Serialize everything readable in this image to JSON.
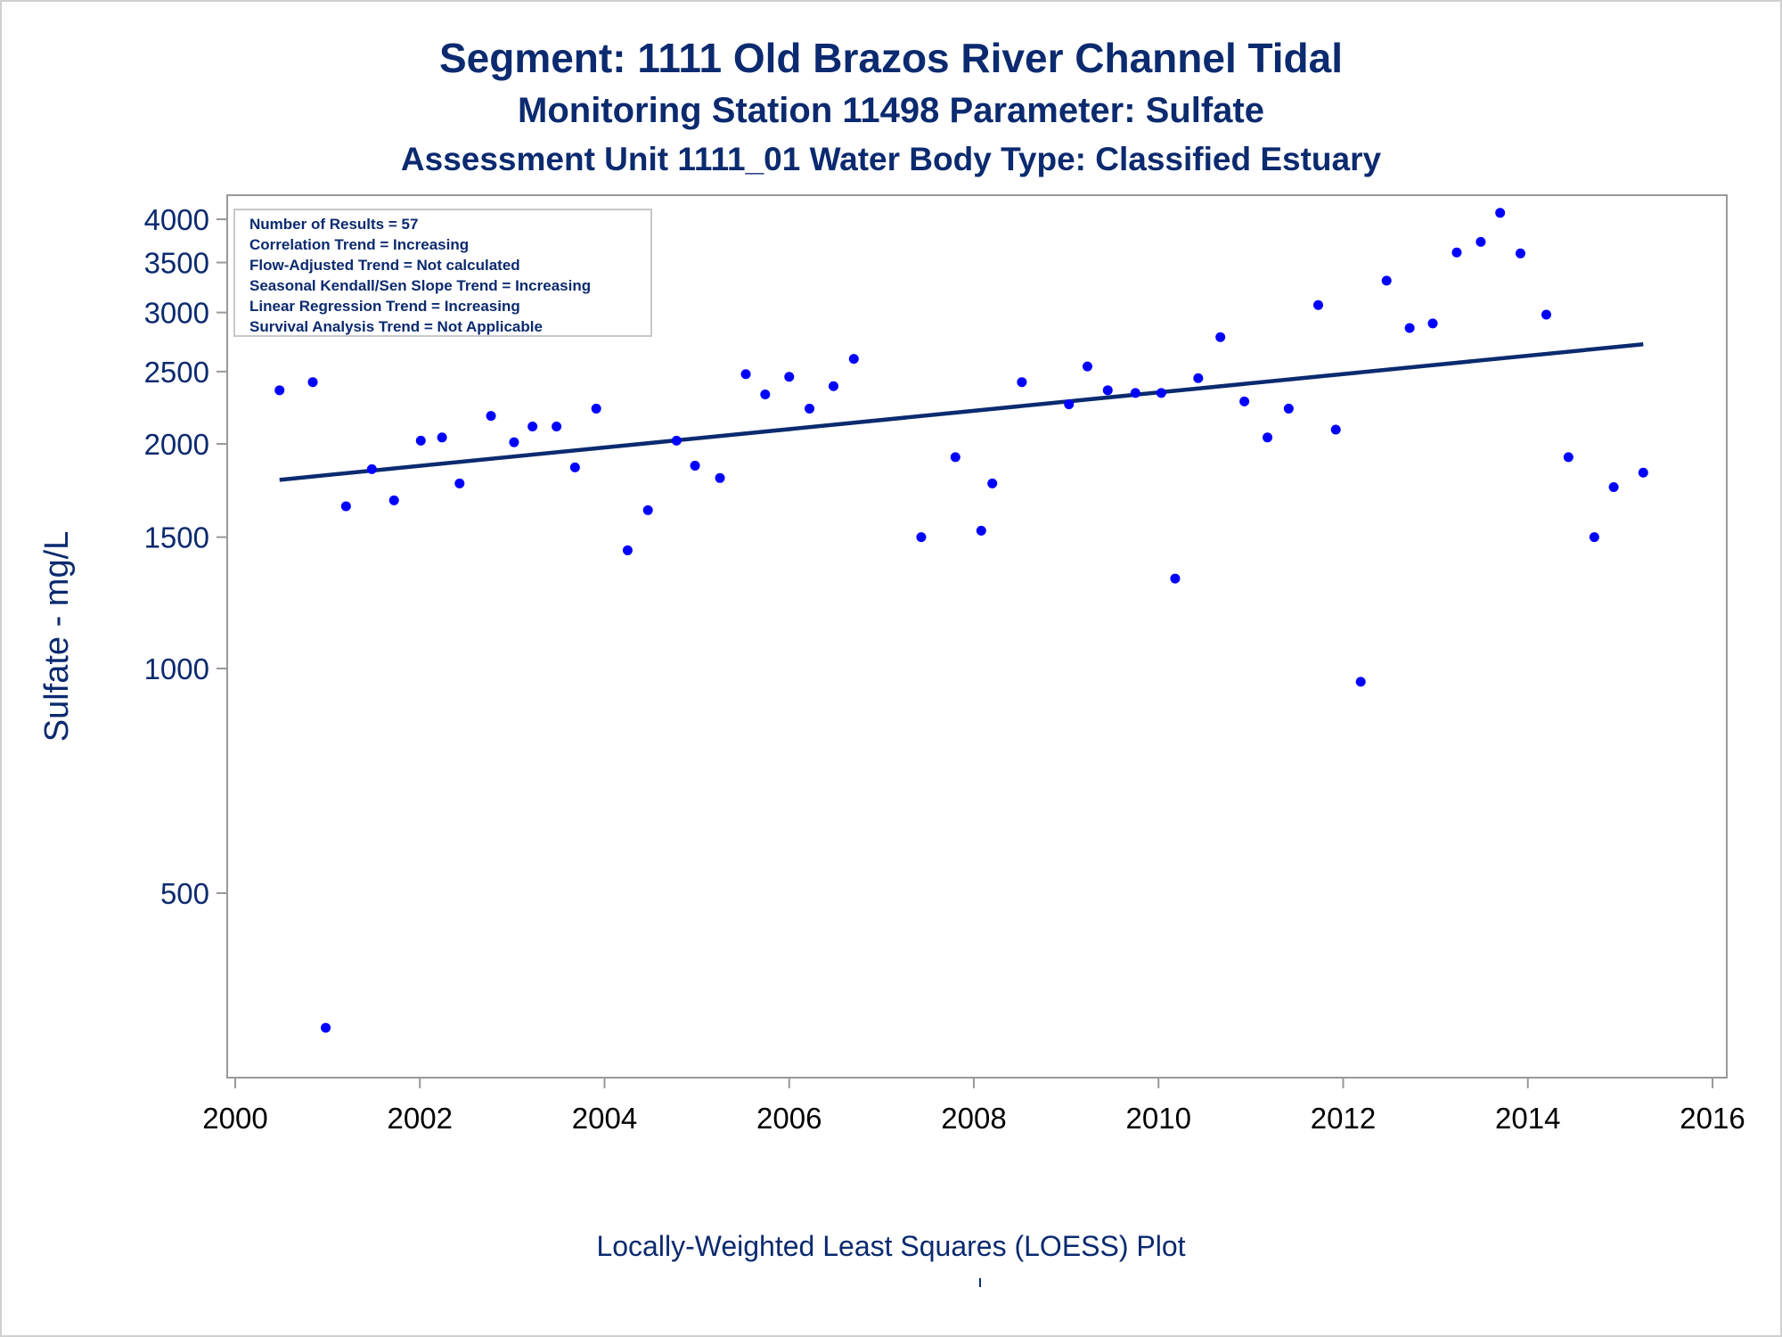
{
  "titles": {
    "line1": "Segment: 1111  Old Brazos River Channel Tidal",
    "line2": "Monitoring Station 11498 Parameter: Sulfate",
    "line3": "Assessment Unit 1111_01   Water Body Type: Classified Estuary"
  },
  "footnote": "Locally-Weighted Least Squares (LOESS) Plot",
  "stats_box": [
    "Number of Results = 57",
    "Correlation Trend = Increasing",
    "Flow-Adjusted Trend = Not calculated",
    "Seasonal Kendall/Sen Slope Trend = Increasing",
    "Linear Regression Trend = Increasing",
    "Survival Analysis Trend = Not Applicable"
  ],
  "colors": {
    "text": "#0b2a6f",
    "points": "#0000ff",
    "trend": "#0b2a6f",
    "frame": "#999999"
  },
  "chart_data": {
    "type": "scatter",
    "ylabel": "Sulfate - mg/L",
    "xlabel": "",
    "yscale": "log",
    "xlim": [
      2000,
      2016
    ],
    "ylim": [
      310,
      4200
    ],
    "xticks": [
      2000,
      2002,
      2004,
      2006,
      2008,
      2010,
      2012,
      2014,
      2016
    ],
    "yticks": [
      500,
      1000,
      1500,
      2000,
      2500,
      3000,
      3500,
      4000
    ],
    "points": [
      {
        "x": 2000.48,
        "y": 2360
      },
      {
        "x": 2000.84,
        "y": 2420
      },
      {
        "x": 2000.98,
        "y": 330
      },
      {
        "x": 2001.2,
        "y": 1650
      },
      {
        "x": 2001.48,
        "y": 1850
      },
      {
        "x": 2001.72,
        "y": 1680
      },
      {
        "x": 2002.01,
        "y": 2020
      },
      {
        "x": 2002.24,
        "y": 2040
      },
      {
        "x": 2002.43,
        "y": 1770
      },
      {
        "x": 2002.77,
        "y": 2180
      },
      {
        "x": 2003.02,
        "y": 2010
      },
      {
        "x": 2003.22,
        "y": 2110
      },
      {
        "x": 2003.48,
        "y": 2110
      },
      {
        "x": 2003.68,
        "y": 1860
      },
      {
        "x": 2003.91,
        "y": 2230
      },
      {
        "x": 2004.25,
        "y": 1440
      },
      {
        "x": 2004.47,
        "y": 1630
      },
      {
        "x": 2004.78,
        "y": 2020
      },
      {
        "x": 2004.98,
        "y": 1870
      },
      {
        "x": 2005.25,
        "y": 1800
      },
      {
        "x": 2005.53,
        "y": 2480
      },
      {
        "x": 2005.74,
        "y": 2330
      },
      {
        "x": 2006.0,
        "y": 2460
      },
      {
        "x": 2006.22,
        "y": 2230
      },
      {
        "x": 2006.48,
        "y": 2390
      },
      {
        "x": 2006.7,
        "y": 2600
      },
      {
        "x": 2007.43,
        "y": 1500
      },
      {
        "x": 2007.8,
        "y": 1920
      },
      {
        "x": 2008.08,
        "y": 1530
      },
      {
        "x": 2008.2,
        "y": 1770
      },
      {
        "x": 2008.52,
        "y": 2420
      },
      {
        "x": 2009.03,
        "y": 2260
      },
      {
        "x": 2009.23,
        "y": 2540
      },
      {
        "x": 2009.45,
        "y": 2360
      },
      {
        "x": 2009.75,
        "y": 2340
      },
      {
        "x": 2010.03,
        "y": 2340
      },
      {
        "x": 2010.18,
        "y": 1320
      },
      {
        "x": 2010.43,
        "y": 2450
      },
      {
        "x": 2010.67,
        "y": 2780
      },
      {
        "x": 2010.93,
        "y": 2280
      },
      {
        "x": 2011.18,
        "y": 2040
      },
      {
        "x": 2011.41,
        "y": 2230
      },
      {
        "x": 2011.73,
        "y": 3070
      },
      {
        "x": 2011.92,
        "y": 2090
      },
      {
        "x": 2012.19,
        "y": 960
      },
      {
        "x": 2012.47,
        "y": 3310
      },
      {
        "x": 2012.72,
        "y": 2860
      },
      {
        "x": 2012.97,
        "y": 2900
      },
      {
        "x": 2013.23,
        "y": 3610
      },
      {
        "x": 2013.49,
        "y": 3730
      },
      {
        "x": 2013.7,
        "y": 4080
      },
      {
        "x": 2013.92,
        "y": 3600
      },
      {
        "x": 2014.2,
        "y": 2980
      },
      {
        "x": 2014.44,
        "y": 1920
      },
      {
        "x": 2014.72,
        "y": 1500
      },
      {
        "x": 2014.93,
        "y": 1750
      },
      {
        "x": 2015.25,
        "y": 1830
      }
    ],
    "trend_line": {
      "x": [
        2000.48,
        2015.25
      ],
      "y": [
        1790,
        2720
      ]
    }
  }
}
